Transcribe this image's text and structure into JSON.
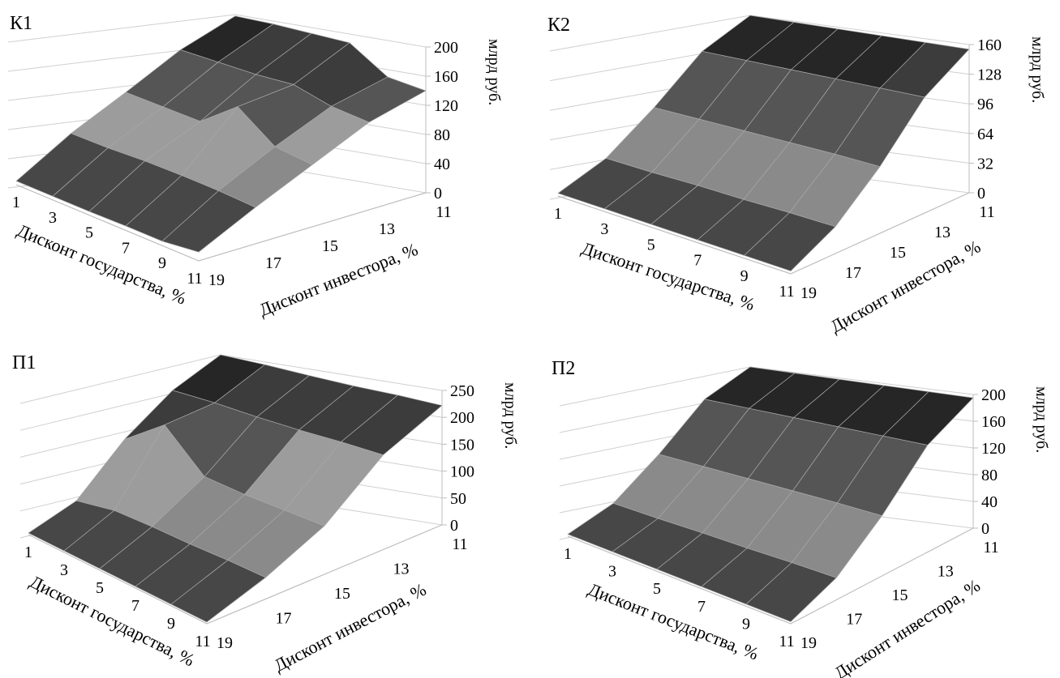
{
  "chart_data": [
    {
      "type": "surface",
      "title": "К1",
      "xlabel": "Дисконт государства, %",
      "ylabel": "Дисконт инвестора, %",
      "zlabel": "млрд руб.",
      "government_discount": [
        1,
        3,
        5,
        7,
        9,
        11
      ],
      "investor_discount": [
        11,
        13,
        15,
        17,
        19
      ],
      "z_ticks": [
        0,
        40,
        80,
        120,
        160,
        200
      ],
      "zlim": [
        0,
        200
      ],
      "z": [
        [
          198,
          196,
          192,
          188,
          150,
          140
        ],
        [
          160,
          155,
          150,
          148,
          130,
          120
        ],
        [
          110,
          105,
          100,
          135,
          95,
          85
        ],
        [
          62,
          60,
          60,
          58,
          55,
          50
        ],
        [
          5,
          5,
          5,
          6,
          6,
          12
        ]
      ]
    },
    {
      "type": "surface",
      "title": "К2",
      "xlabel": "Дисконт государства, %",
      "ylabel": "Дисконт инвестора, %",
      "zlabel": "млрд руб.",
      "government_discount": [
        1,
        3,
        5,
        7,
        9,
        11
      ],
      "investor_discount": [
        11,
        13,
        15,
        17,
        19
      ],
      "z_ticks": [
        0,
        32,
        64,
        96,
        128,
        160
      ],
      "zlim": [
        0,
        160
      ],
      "z": [
        [
          160,
          159,
          158,
          157,
          156,
          155
        ],
        [
          130,
          129,
          128,
          127,
          126,
          125
        ],
        [
          78,
          77,
          76,
          75,
          74,
          72
        ],
        [
          32,
          31,
          31,
          30,
          30,
          29
        ],
        [
          3,
          3,
          3,
          3,
          3,
          3
        ]
      ]
    },
    {
      "type": "surface",
      "title": "П1",
      "xlabel": "Дисконт государства, %",
      "ylabel": "Дисконт инвестора, %",
      "zlabel": "млрд руб.",
      "government_discount": [
        1,
        3,
        5,
        7,
        9,
        11
      ],
      "investor_discount": [
        11,
        13,
        15,
        17,
        19
      ],
      "z_ticks": [
        0,
        50,
        100,
        150,
        200,
        250
      ],
      "zlim": [
        0,
        250
      ],
      "z": [
        [
          250,
          245,
          238,
          232,
          228,
          222
        ],
        [
          205,
          200,
          192,
          186,
          182,
          176
        ],
        [
          135,
          185,
          112,
          102,
          96,
          90
        ],
        [
          42,
          52,
          50,
          46,
          44,
          40
        ],
        [
          3,
          3,
          3,
          3,
          3,
          3
        ]
      ]
    },
    {
      "type": "surface",
      "title": "П2",
      "xlabel": "Дисконт государства, %",
      "ylabel": "Дисконт инвестора, %",
      "zlabel": "млрд руб.",
      "government_discount": [
        1,
        3,
        5,
        7,
        9,
        11
      ],
      "investor_discount": [
        11,
        13,
        15,
        17,
        19
      ],
      "z_ticks": [
        0,
        40,
        80,
        120,
        160,
        200
      ],
      "zlim": [
        0,
        200
      ],
      "z": [
        [
          200,
          199,
          198,
          197,
          196,
          195
        ],
        [
          165,
          164,
          163,
          162,
          161,
          160
        ],
        [
          96,
          95,
          94,
          93,
          92,
          90
        ],
        [
          36,
          35,
          35,
          34,
          34,
          33
        ],
        [
          3,
          3,
          3,
          3,
          3,
          3
        ]
      ]
    }
  ]
}
